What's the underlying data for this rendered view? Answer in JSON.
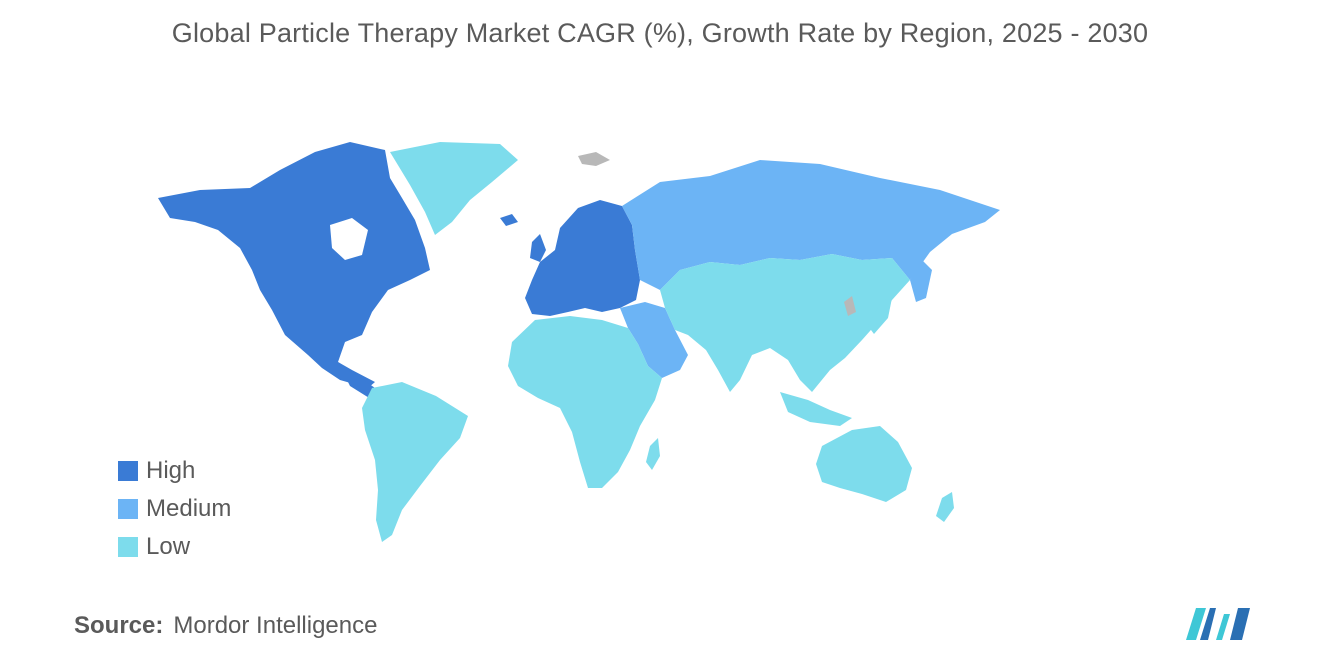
{
  "title": "Global Particle Therapy Market CAGR (%), Growth Rate by Region, 2025 - 2030",
  "legend": [
    {
      "label": "High",
      "color": "#3a7bd5"
    },
    {
      "label": "Medium",
      "color": "#6cb4f5"
    },
    {
      "label": "Low",
      "color": "#7ddcec"
    }
  ],
  "colors": {
    "high": "#3a7bd5",
    "medium": "#6cb4f5",
    "low": "#7ddcec",
    "no_data": "#b8b8b8"
  },
  "regions": [
    {
      "region": "North America",
      "level": "High"
    },
    {
      "region": "Europe",
      "level": "High"
    },
    {
      "region": "Russia & Middle East",
      "level": "Medium"
    },
    {
      "region": "Asia-Pacific",
      "level": "Low"
    },
    {
      "region": "South America",
      "level": "Low"
    },
    {
      "region": "Africa",
      "level": "Low"
    }
  ],
  "source": {
    "label": "Source:",
    "value": "Mordor Intelligence"
  },
  "logo": {
    "icon": "mordor-intelligence-logo"
  }
}
